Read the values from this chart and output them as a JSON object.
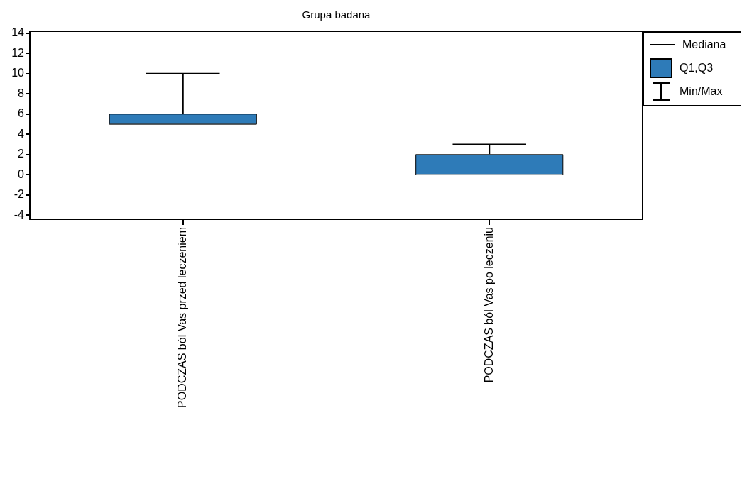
{
  "chart_data": {
    "type": "box",
    "title": "Grupa badana",
    "categories": [
      "PODCZAS ból Vas przed leczeniem",
      "PODCZAS ból Vas po leczeniu"
    ],
    "boxes": [
      {
        "low": 5,
        "q1": 5,
        "median": 5,
        "q3": 6,
        "high": 10
      },
      {
        "low": 0,
        "q1": 0,
        "median": 2,
        "q3": 2,
        "high": 3
      }
    ],
    "color": "#2e7bb8",
    "ylim": [
      -4.4,
      14.2
    ],
    "yticks": [
      -4,
      -2,
      0,
      2,
      4,
      6,
      8,
      10,
      12,
      14
    ],
    "annotations": [
      "Mediana",
      "Q1,Q3",
      "Min/Max"
    ]
  }
}
